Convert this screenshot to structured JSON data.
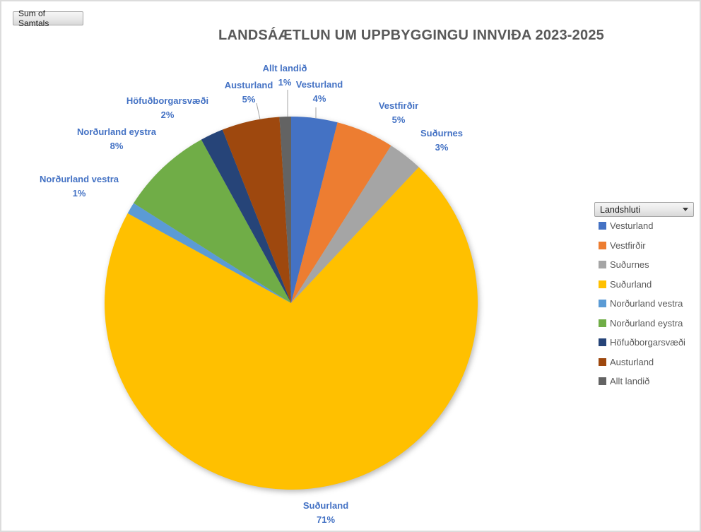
{
  "window": {
    "background": "#ffffff",
    "border_color": "#dcdcdc"
  },
  "pivot_buttons": {
    "value_button_label": "Sum of Samtals",
    "filter_button_label": "Landshluti"
  },
  "chart_data": {
    "type": "pie",
    "title": "LANDSÁÆTLUN UM UPPBYGGINGU INNVIÐA 2023-2025",
    "unit": "%",
    "direction": "clockwise",
    "start_angle_deg": 0,
    "legend_position": "right",
    "categories": [
      "Vesturland",
      "Vestfirðir",
      "Suðurnes",
      "Suðurland",
      "Norðurland vestra",
      "Norðurland eystra",
      "Höfuðborgarsvæði",
      "Austurland",
      "Allt landið"
    ],
    "values": [
      4,
      5,
      3,
      71,
      1,
      8,
      2,
      5,
      1
    ],
    "data_labels": [
      "Vesturland 4%",
      "Vestfirðir 5%",
      "Suðurnes 3%",
      "Suðurland 71%",
      "Norðurland vestra 1%",
      "Norðurland eystra 8%",
      "Höfuðborgarsvæði 2%",
      "Austurland 5%",
      "Allt landið 1%"
    ],
    "slice_colors": [
      "#4472c4",
      "#ed7d31",
      "#a5a5a5",
      "#ffc000",
      "#5b9bd5",
      "#70ad47",
      "#264478",
      "#9e480e",
      "#636363"
    ],
    "data_label_color": "#4472c4",
    "title_color": "#595959",
    "legend_text_color": "#595959",
    "leader_line_color": "#a6a6a6"
  }
}
